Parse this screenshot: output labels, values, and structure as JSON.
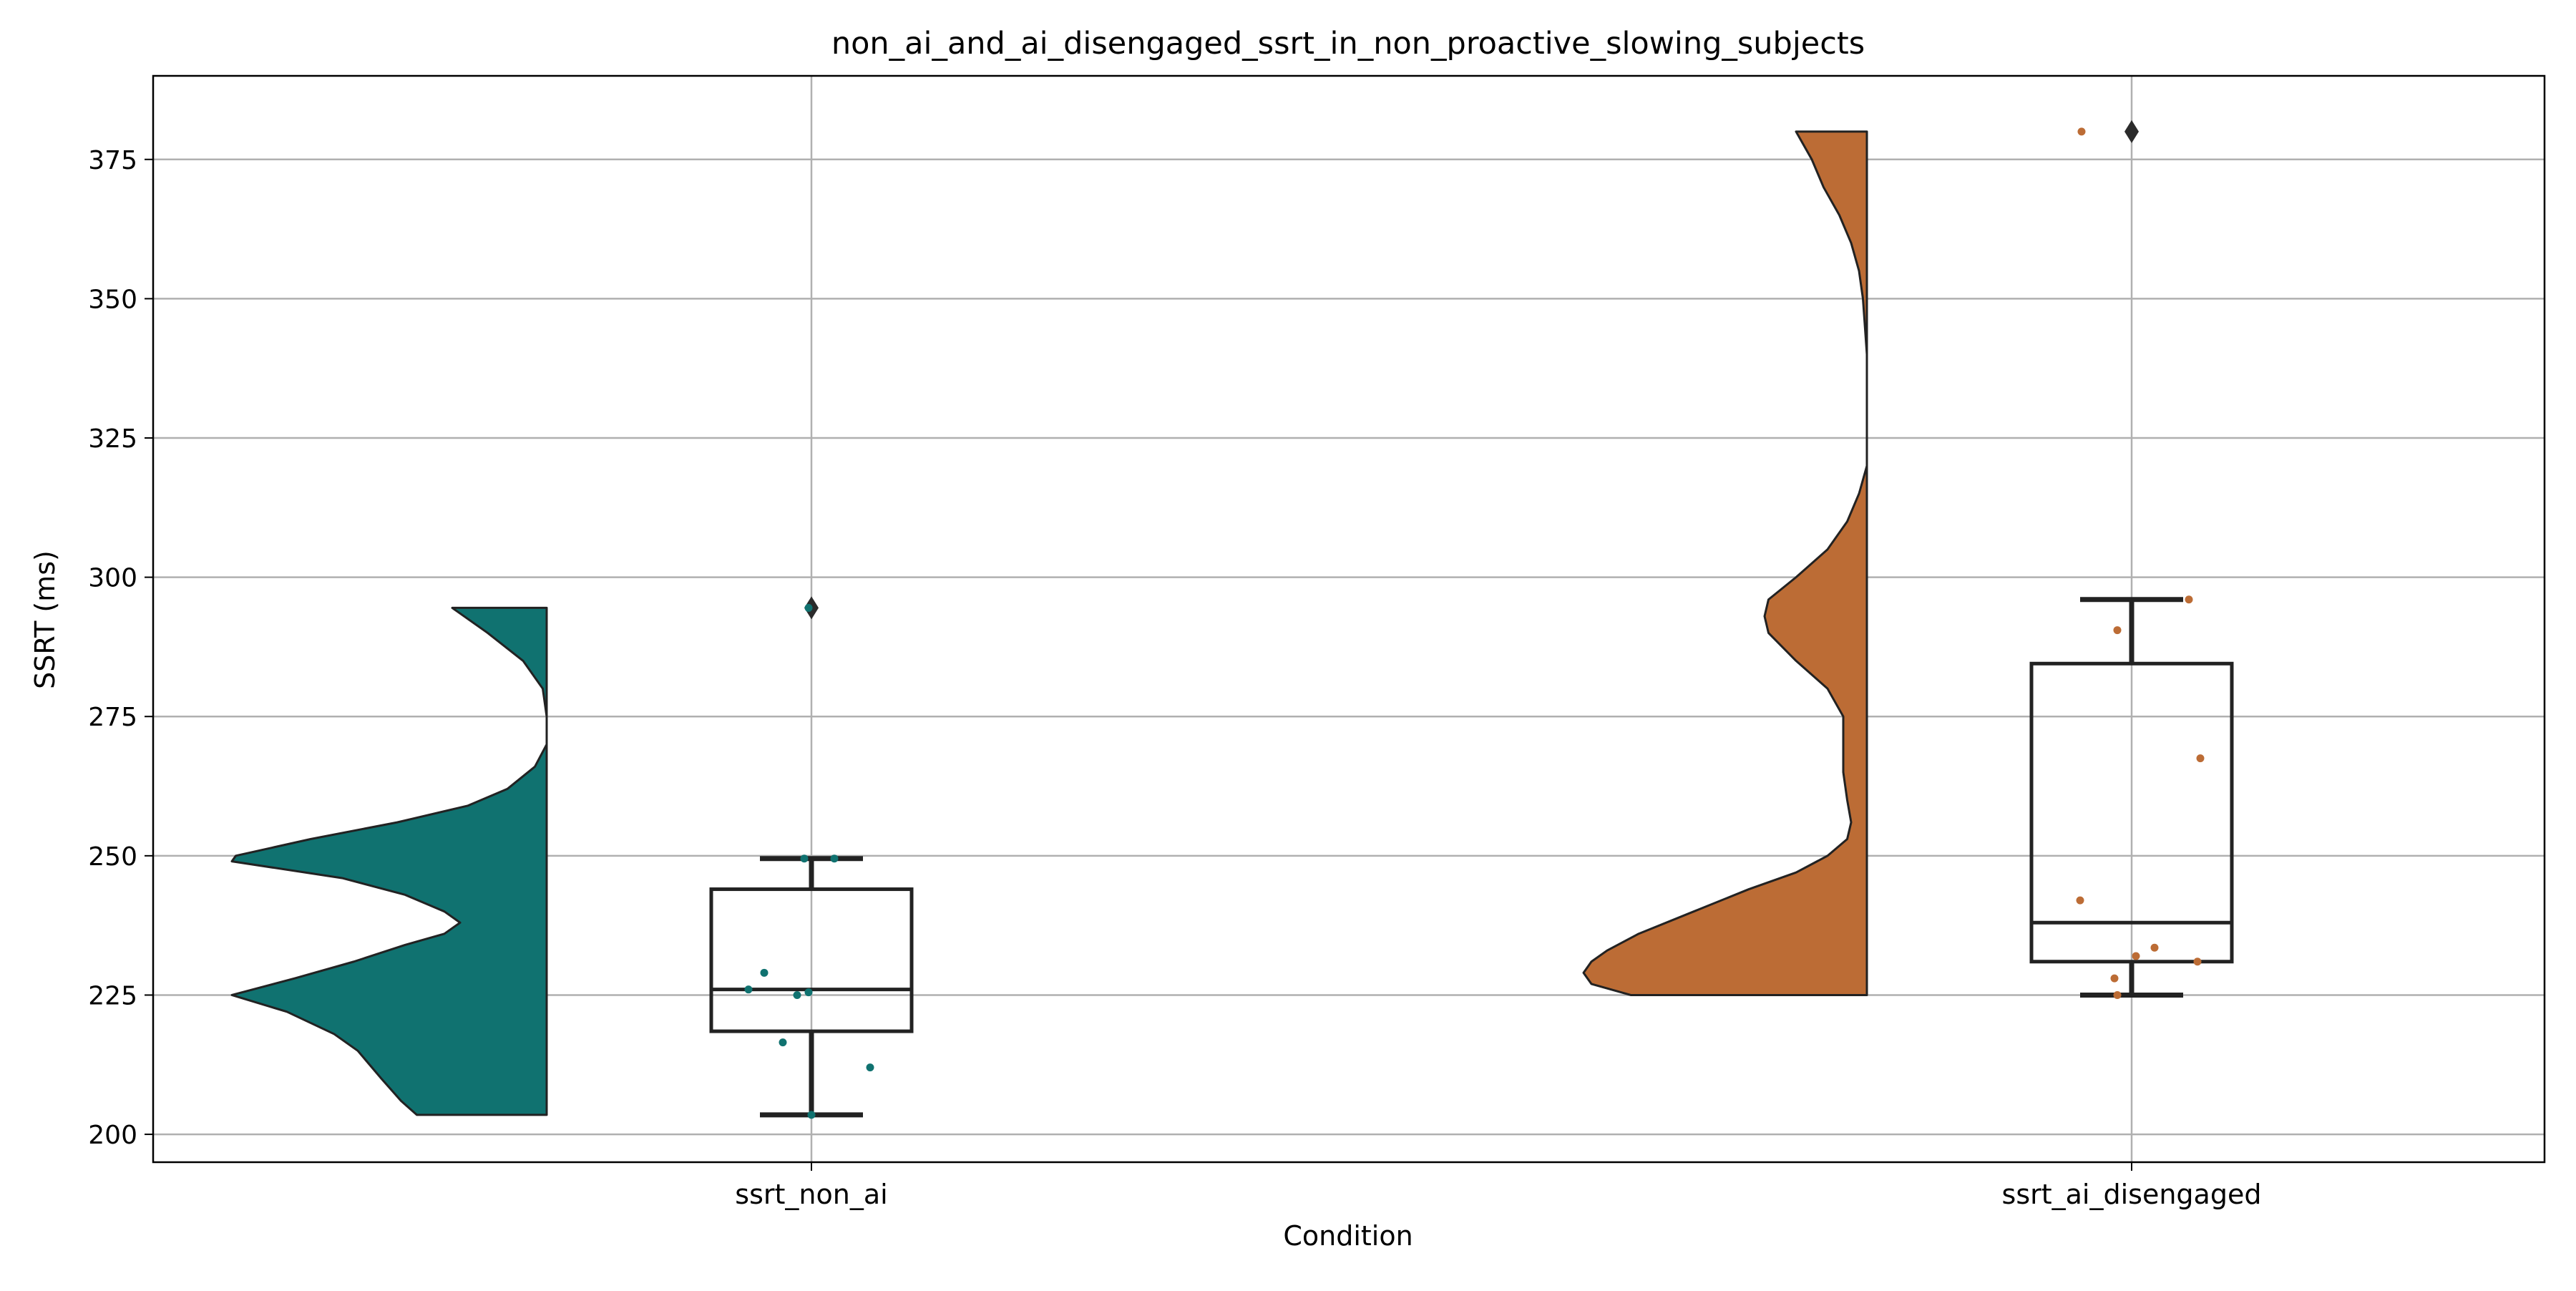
{
  "chart_data": {
    "type": "raincloud",
    "title": "non_ai_and_ai_disengaged_ssrt_in_non_proactive_slowing_subjects",
    "xlabel": "Condition",
    "ylabel": "SSRT (ms)",
    "ylim": [
      195,
      390
    ],
    "yticks": [
      200,
      225,
      250,
      275,
      300,
      325,
      350,
      375
    ],
    "grid": true,
    "categories": [
      "ssrt_non_ai",
      "ssrt_ai_disengaged"
    ],
    "series": [
      {
        "category": "ssrt_non_ai",
        "color": "#107270",
        "violin": [
          [
            203.5,
            0.33
          ],
          [
            206,
            0.37
          ],
          [
            210,
            0.42
          ],
          [
            215,
            0.48
          ],
          [
            218,
            0.54
          ],
          [
            222,
            0.66
          ],
          [
            225,
            0.8
          ],
          [
            228,
            0.64
          ],
          [
            231,
            0.49
          ],
          [
            234,
            0.36
          ],
          [
            236,
            0.26
          ],
          [
            238,
            0.22
          ],
          [
            240,
            0.26
          ],
          [
            243,
            0.36
          ],
          [
            246,
            0.52
          ],
          [
            249,
            0.8
          ],
          [
            250,
            0.79
          ],
          [
            253,
            0.6
          ],
          [
            256,
            0.38
          ],
          [
            259,
            0.2
          ],
          [
            262,
            0.1
          ],
          [
            266,
            0.03
          ],
          [
            270,
            0.0
          ],
          [
            275,
            0.0
          ],
          [
            280,
            0.01
          ],
          [
            285,
            0.06
          ],
          [
            290,
            0.15
          ],
          [
            294.5,
            0.24
          ]
        ],
        "box": {
          "whisker_low": 203.5,
          "q1": 218.5,
          "median": 226,
          "q3": 244,
          "whisker_high": 249.5,
          "outliers": [
            294.5
          ]
        },
        "points": [
          [
            203.5,
            0.0
          ],
          [
            212,
            0.41
          ],
          [
            216.5,
            -0.2
          ],
          [
            225,
            -0.1
          ],
          [
            225.5,
            -0.02
          ],
          [
            226,
            -0.44
          ],
          [
            229,
            -0.33
          ],
          [
            249.5,
            -0.05
          ],
          [
            249.5,
            0.16
          ],
          [
            294.5,
            -0.02
          ]
        ]
      },
      {
        "category": "ssrt_ai_disengaged",
        "color": "#bc6c35",
        "violin": [
          [
            225,
            0.6
          ],
          [
            227,
            0.7
          ],
          [
            229,
            0.72
          ],
          [
            231,
            0.7
          ],
          [
            233,
            0.66
          ],
          [
            236,
            0.58
          ],
          [
            240,
            0.44
          ],
          [
            244,
            0.3
          ],
          [
            247,
            0.18
          ],
          [
            250,
            0.1
          ],
          [
            253,
            0.05
          ],
          [
            256,
            0.04
          ],
          [
            260,
            0.05
          ],
          [
            265,
            0.06
          ],
          [
            270,
            0.06
          ],
          [
            275,
            0.06
          ],
          [
            280,
            0.1
          ],
          [
            285,
            0.18
          ],
          [
            290,
            0.25
          ],
          [
            293,
            0.26
          ],
          [
            296,
            0.25
          ],
          [
            300,
            0.18
          ],
          [
            305,
            0.1
          ],
          [
            310,
            0.05
          ],
          [
            315,
            0.02
          ],
          [
            320,
            0.0
          ],
          [
            330,
            0.0
          ],
          [
            340,
            0.0
          ],
          [
            350,
            0.01
          ],
          [
            355,
            0.02
          ],
          [
            360,
            0.04
          ],
          [
            365,
            0.07
          ],
          [
            370,
            0.11
          ],
          [
            375,
            0.14
          ],
          [
            380,
            0.18
          ]
        ],
        "box": {
          "whisker_low": 225,
          "q1": 231,
          "median": 238,
          "q3": 284.5,
          "whisker_high": 296,
          "outliers": [
            380
          ]
        },
        "points": [
          [
            225,
            -0.1
          ],
          [
            228,
            -0.12
          ],
          [
            231,
            0.46
          ],
          [
            232,
            0.03
          ],
          [
            233.5,
            0.16
          ],
          [
            242,
            -0.36
          ],
          [
            267.5,
            0.48
          ],
          [
            290.5,
            -0.1
          ],
          [
            296,
            0.4
          ],
          [
            380,
            -0.35
          ]
        ]
      }
    ]
  }
}
